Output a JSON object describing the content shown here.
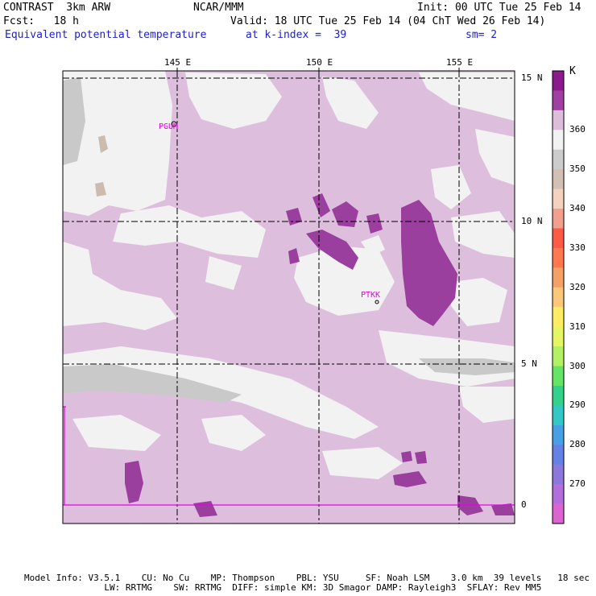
{
  "header": {
    "model": "CONTRAST  3km ARW",
    "center": "NCAR/MMM",
    "init": "Init: 00 UTC Tue 25 Feb 14",
    "forecast": "Fcst:   18 h",
    "valid": "Valid: 18 UTC Tue 25 Feb 14 (04 ChT Wed 26 Feb 14)",
    "field": "Equivalent potential temperature",
    "level": "at k-index =  39",
    "smoothing": "sm= 2"
  },
  "map": {
    "lon_labels": [
      "145 E",
      "150 E",
      "155 E"
    ],
    "lat_labels": [
      "15 N",
      "10 N",
      "5 N",
      "0"
    ],
    "stations": [
      {
        "id": "PGUM"
      },
      {
        "id": "PTKK"
      }
    ],
    "colors": {
      "background_fill": "#ddbfdd",
      "lavender": "#d8b8da",
      "light_gray": "#f2f2f2",
      "mid_gray": "#c9c9c9",
      "tan": "#ccbcb0",
      "dark_purple": "#9b3f9e",
      "gridline": "#000000",
      "station_label": "#e600e6",
      "equator_line": "#e600e6"
    }
  },
  "colorbar": {
    "unit": "K",
    "tick_labels": [
      "360",
      "350",
      "340",
      "330",
      "320",
      "310",
      "300",
      "290",
      "280",
      "270"
    ],
    "swatches": [
      "#8c1a8c",
      "#a040a0",
      "#dcbedc",
      "#f2f2f2",
      "#cccccc",
      "#d2c0b4",
      "#f5d2be",
      "#f0a08c",
      "#ff5a46",
      "#ff7850",
      "#f5a064",
      "#fac878",
      "#ffeb64",
      "#e6f564",
      "#b4f064",
      "#64e664",
      "#32d28c",
      "#32c8c8",
      "#46a0e6",
      "#6482e6",
      "#8c78dc",
      "#b46edc",
      "#dc64d2"
    ]
  },
  "footer": {
    "line1": "Model Info: V3.5.1    CU: No Cu    MP: Thompson    PBL: YSU     SF: Noah LSM    3.0 km  39 levels   18 sec",
    "line2": "               LW: RRTMG    SW: RRTMG  DIFF: simple KM: 3D Smagor DAMP: Rayleigh3  SFLAY: Rev MM5"
  }
}
